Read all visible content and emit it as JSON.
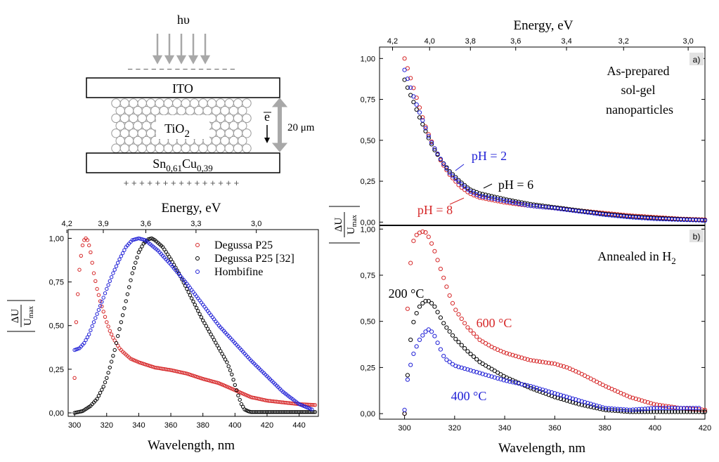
{
  "colors": {
    "red": "#d62728",
    "black": "#000000",
    "blue": "#1f1fd6",
    "grey": "#a8a8a8"
  },
  "schematic": {
    "light": "hυ",
    "top_layer": "ITO",
    "middle_layer": "TiO",
    "middle_sub": "2",
    "bottom_layer": {
      "a": "Sn",
      "a_sub": "0,61",
      "b": "Cu",
      "b_sub": "0,39"
    },
    "electron": "e",
    "thickness": "20 μm",
    "minus_signs": "− − − − − − − − − − − − − −",
    "plus_signs": "+ + + + + + + + + + + + + + +"
  },
  "chart_data": [
    {
      "id": "left",
      "type": "scatter",
      "title": "",
      "xlabel": "Wavelength, nm",
      "ylabel": "ΔU / U_max",
      "ylabel_num": "ΔU",
      "ylabel_den": "U",
      "ylabel_den_sub": "max",
      "top_axis_label": "Energy, eV",
      "xlim": [
        296,
        452
      ],
      "ylim": [
        -0.02,
        1.05
      ],
      "x_ticks": [
        300,
        320,
        340,
        360,
        380,
        400,
        420,
        440
      ],
      "x_tick_labels": [
        "300",
        "320",
        "340",
        "360",
        "380",
        "400",
        "420",
        "440"
      ],
      "y_ticks": [
        0,
        0.25,
        0.5,
        0.75,
        1.0
      ],
      "y_tick_labels": [
        "0,00",
        "0,25",
        "0,50",
        "0,75",
        "1,00"
      ],
      "top_ticks_nm": [
        295.2,
        317.9,
        344.4,
        375.7,
        413.3
      ],
      "top_tick_labels": [
        "4,2",
        "3,9",
        "3,6",
        "3,3",
        "3,0"
      ],
      "legend_position": "top-right",
      "series": [
        {
          "name": "Degussa P25",
          "color": "#d62728",
          "x": [
            300,
            301,
            302,
            303,
            304,
            305,
            306,
            307,
            308,
            309,
            310,
            311,
            312,
            314,
            316,
            318,
            320,
            322,
            324,
            326,
            328,
            330,
            335,
            340,
            345,
            350,
            360,
            370,
            380,
            390,
            400,
            410,
            420,
            430,
            440,
            450
          ],
          "y": [
            0.2,
            0.52,
            0.68,
            0.82,
            0.9,
            0.96,
            0.99,
            1.0,
            0.99,
            0.96,
            0.92,
            0.86,
            0.8,
            0.71,
            0.64,
            0.58,
            0.52,
            0.47,
            0.43,
            0.4,
            0.37,
            0.35,
            0.31,
            0.29,
            0.275,
            0.26,
            0.245,
            0.225,
            0.195,
            0.17,
            0.13,
            0.09,
            0.07,
            0.06,
            0.05,
            0.045
          ]
        },
        {
          "name": "Degussa P25 [32]",
          "color": "#000000",
          "x": [
            300,
            305,
            310,
            314,
            318,
            320,
            322,
            325,
            328,
            330,
            333,
            336,
            340,
            343,
            346,
            348,
            350,
            355,
            360,
            365,
            370,
            375,
            380,
            385,
            390,
            395,
            398,
            400,
            402,
            404,
            406,
            408,
            410,
            420,
            430,
            440,
            450
          ],
          "y": [
            0.0,
            0.01,
            0.04,
            0.08,
            0.15,
            0.2,
            0.26,
            0.36,
            0.48,
            0.56,
            0.68,
            0.8,
            0.92,
            0.97,
            0.995,
            1.0,
            0.99,
            0.95,
            0.88,
            0.8,
            0.71,
            0.62,
            0.53,
            0.45,
            0.37,
            0.29,
            0.22,
            0.16,
            0.1,
            0.05,
            0.02,
            0.01,
            0.005,
            0.005,
            0.005,
            0.005,
            0.005
          ]
        },
        {
          "name": "Hombifine",
          "color": "#1f1fd6",
          "x": [
            300,
            303,
            306,
            309,
            312,
            315,
            318,
            320,
            324,
            328,
            332,
            336,
            340,
            344,
            348,
            352,
            356,
            360,
            370,
            380,
            390,
            400,
            410,
            420,
            430,
            440,
            448
          ],
          "y": [
            0.36,
            0.37,
            0.4,
            0.45,
            0.52,
            0.59,
            0.66,
            0.71,
            0.8,
            0.88,
            0.95,
            0.99,
            1.0,
            0.99,
            0.96,
            0.93,
            0.89,
            0.85,
            0.74,
            0.62,
            0.5,
            0.4,
            0.3,
            0.21,
            0.12,
            0.05,
            0.02
          ]
        }
      ]
    },
    {
      "id": "right_a",
      "type": "scatter",
      "panel_label": "a)",
      "annotation_lines": [
        "As-prepared",
        "sol-gel",
        "nanoparticles"
      ],
      "top_axis_label": "Energy, eV",
      "xlim": [
        290,
        420
      ],
      "ylim": [
        -0.02,
        1.07
      ],
      "y_ticks": [
        0,
        0.25,
        0.5,
        0.75,
        1.0
      ],
      "y_tick_labels": [
        "0,00",
        "0,25",
        "0,50",
        "0,75",
        "1,00"
      ],
      "top_ticks_nm": [
        295.2,
        310.0,
        326.3,
        344.4,
        364.7,
        387.5,
        413.3
      ],
      "top_tick_labels": [
        "4,2",
        "4,0",
        "3,8",
        "3,6",
        "3,4",
        "3,2",
        "3,0"
      ],
      "series": [
        {
          "name": "pH = 8",
          "color": "#d62728",
          "x": [
            300,
            302,
            304,
            306,
            308,
            310,
            312,
            315,
            318,
            322,
            326,
            330,
            340,
            350,
            360,
            370,
            380,
            390,
            400,
            410,
            420
          ],
          "y": [
            1.0,
            0.9,
            0.8,
            0.7,
            0.6,
            0.52,
            0.45,
            0.36,
            0.29,
            0.22,
            0.175,
            0.15,
            0.12,
            0.1,
            0.085,
            0.07,
            0.055,
            0.04,
            0.03,
            0.02,
            0.015
          ]
        },
        {
          "name": "pH = 6",
          "color": "#000000",
          "x": [
            300,
            302,
            304,
            306,
            308,
            310,
            312,
            315,
            318,
            322,
            326,
            330,
            340,
            350,
            360,
            370,
            380,
            390,
            400,
            410,
            420
          ],
          "y": [
            0.87,
            0.79,
            0.72,
            0.64,
            0.57,
            0.5,
            0.44,
            0.37,
            0.31,
            0.25,
            0.2,
            0.175,
            0.14,
            0.11,
            0.09,
            0.07,
            0.05,
            0.035,
            0.025,
            0.018,
            0.012
          ]
        },
        {
          "name": "pH = 2",
          "color": "#1f1fd6",
          "x": [
            300,
            302,
            304,
            306,
            308,
            310,
            312,
            315,
            318,
            322,
            326,
            330,
            340,
            350,
            360,
            370,
            380,
            390,
            400,
            410,
            420
          ],
          "y": [
            0.93,
            0.84,
            0.75,
            0.67,
            0.59,
            0.51,
            0.45,
            0.37,
            0.3,
            0.24,
            0.19,
            0.16,
            0.13,
            0.1,
            0.085,
            0.065,
            0.045,
            0.03,
            0.02,
            0.015,
            0.01
          ]
        }
      ],
      "labels": {
        "ph2": "pH = 2",
        "ph6": "pH = 6",
        "ph8": "pH = 8"
      }
    },
    {
      "id": "right_b",
      "type": "scatter",
      "panel_label": "b)",
      "annotation": "Annealed in H",
      "annotation_sub": "2",
      "xlabel": "Wavelength, nm",
      "xlim": [
        290,
        420
      ],
      "ylim": [
        -0.03,
        1.02
      ],
      "x_ticks": [
        300,
        320,
        340,
        360,
        380,
        400,
        420
      ],
      "x_tick_labels": [
        "300",
        "320",
        "340",
        "360",
        "380",
        "400",
        "420"
      ],
      "y_ticks": [
        0,
        0.25,
        0.5,
        0.75,
        1.0
      ],
      "y_tick_labels": [
        "0,00",
        "0,25",
        "0,50",
        "0,75",
        "1,00"
      ],
      "series": [
        {
          "name": "600 °C",
          "color": "#d62728",
          "x": [
            300,
            301,
            302,
            303,
            304,
            306,
            308,
            310,
            312,
            314,
            316,
            318,
            320,
            325,
            330,
            335,
            340,
            350,
            360,
            365,
            370,
            380,
            390,
            400,
            410,
            420
          ],
          "y": [
            0.0,
            0.52,
            0.76,
            0.9,
            0.96,
            0.98,
            0.99,
            0.95,
            0.88,
            0.8,
            0.72,
            0.64,
            0.57,
            0.47,
            0.4,
            0.36,
            0.33,
            0.29,
            0.27,
            0.25,
            0.22,
            0.15,
            0.09,
            0.05,
            0.03,
            0.02
          ]
        },
        {
          "name": "200 °C",
          "color": "#000000",
          "x": [
            300,
            301,
            302,
            303,
            304,
            306,
            308,
            310,
            312,
            314,
            316,
            320,
            325,
            330,
            340,
            350,
            360,
            370,
            380,
            390,
            400,
            410,
            420
          ],
          "y": [
            0.0,
            0.17,
            0.36,
            0.46,
            0.52,
            0.58,
            0.61,
            0.61,
            0.58,
            0.53,
            0.48,
            0.41,
            0.34,
            0.28,
            0.2,
            0.14,
            0.09,
            0.05,
            0.02,
            0.01,
            0.01,
            0.01,
            0.01
          ]
        },
        {
          "name": "400 °C",
          "color": "#1f1fd6",
          "x": [
            300,
            301,
            302,
            303,
            304,
            306,
            308,
            310,
            312,
            314,
            316,
            320,
            325,
            330,
            340,
            350,
            360,
            370,
            380,
            390,
            400,
            410,
            418
          ],
          "y": [
            0.02,
            0.17,
            0.24,
            0.3,
            0.34,
            0.4,
            0.44,
            0.46,
            0.42,
            0.36,
            0.3,
            0.26,
            0.24,
            0.22,
            0.18,
            0.15,
            0.11,
            0.07,
            0.03,
            0.02,
            0.03,
            0.03,
            0.03
          ]
        }
      ],
      "labels": {
        "t200": "200 °C",
        "t400": "400 °C",
        "t600": "600 °C"
      }
    }
  ],
  "right_ylabel": {
    "num": "ΔU",
    "den": "U",
    "den_sub": "max"
  }
}
